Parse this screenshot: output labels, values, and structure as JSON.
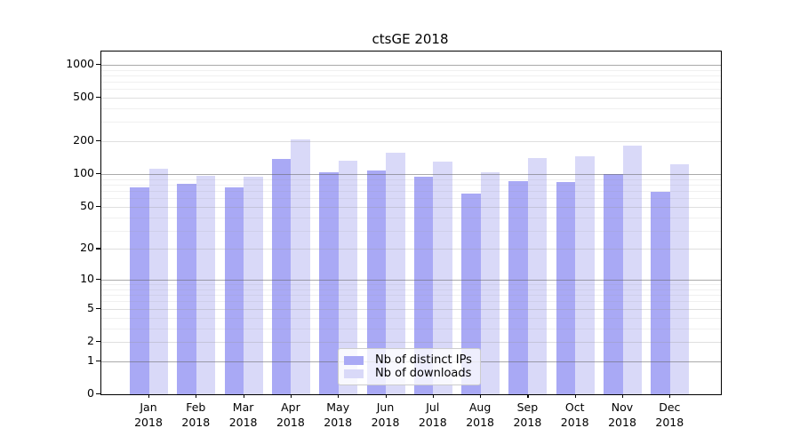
{
  "title": "ctsGE 2018",
  "chart_data": {
    "type": "bar",
    "title": "ctsGE 2018",
    "categories": [
      "Jan",
      "Feb",
      "Mar",
      "Apr",
      "May",
      "Jun",
      "Jul",
      "Aug",
      "Sep",
      "Oct",
      "Nov",
      "Dec"
    ],
    "category_year": "2018",
    "series": [
      {
        "name": "Nb of distinct IPs",
        "color": "#a9a9f5",
        "values": [
          76,
          82,
          76,
          138,
          105,
          108,
          94,
          66,
          87,
          85,
          100,
          69
        ]
      },
      {
        "name": "Nb of downloads",
        "color": "#d9d9f8",
        "values": [
          112,
          97,
          94,
          209,
          134,
          158,
          130,
          104,
          141,
          147,
          183,
          124
        ]
      }
    ],
    "y_axis": {
      "ticks": [
        0,
        1,
        2,
        5,
        10,
        20,
        50,
        100,
        200,
        500,
        1000
      ],
      "scale": "log10(value+1)",
      "top_value": 1320
    },
    "grid": true,
    "legend": {
      "position": "inside-bottom-center",
      "entries": [
        "Nb of distinct IPs",
        "Nb of downloads"
      ]
    },
    "colors": {
      "bar_ips": "#a9a9f5",
      "bar_downloads": "#d9d9f8",
      "grid_decade": "#aaaaaa",
      "grid_major": "#e2e2e2",
      "grid_minor": "#f2f2f2",
      "spine": "#000000"
    }
  }
}
